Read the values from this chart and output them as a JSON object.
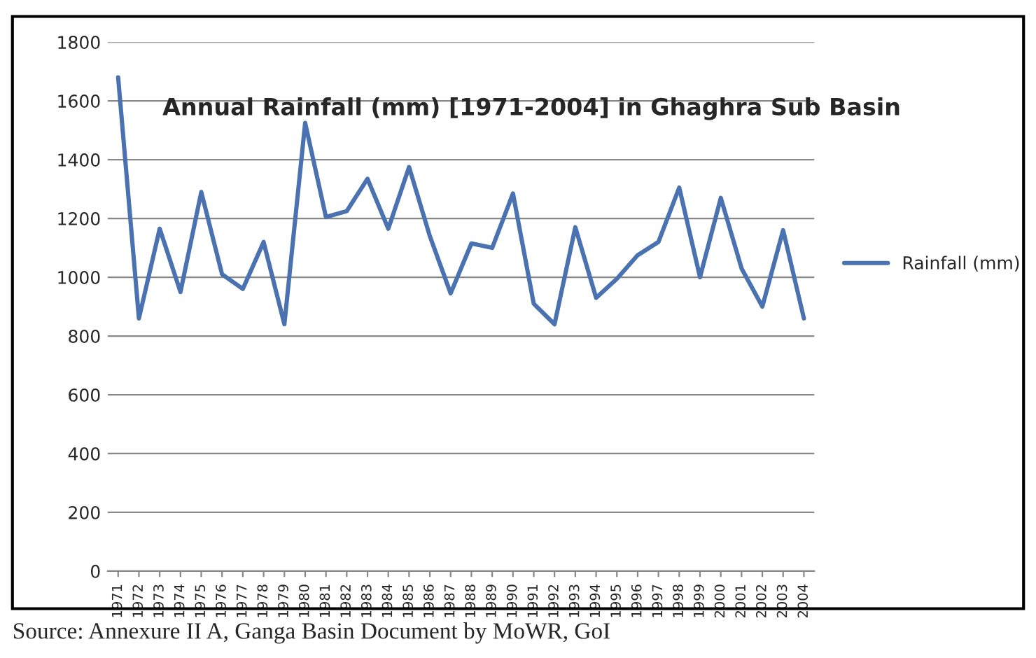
{
  "chart_data": {
    "type": "line",
    "title": "Annual Rainfall (mm) [1971-2004] in Ghaghra Sub Basin",
    "categories": [
      "1971",
      "1972",
      "1973",
      "1974",
      "1975",
      "1976",
      "1977",
      "1978",
      "1979",
      "1980",
      "1981",
      "1982",
      "1983",
      "1984",
      "1985",
      "1986",
      "1987",
      "1988",
      "1989",
      "1990",
      "1991",
      "1992",
      "1993",
      "1994",
      "1995",
      "1996",
      "1997",
      "1998",
      "1999",
      "2000",
      "2001",
      "2002",
      "2003",
      "2004"
    ],
    "series": [
      {
        "name": "Rainfall (mm)",
        "color": "#4a72b0",
        "values": [
          1680,
          860,
          1165,
          950,
          1290,
          1010,
          960,
          1120,
          840,
          1525,
          1205,
          1225,
          1335,
          1165,
          1375,
          1140,
          945,
          1115,
          1100,
          1285,
          910,
          840,
          1170,
          930,
          995,
          1075,
          1120,
          1305,
          1000,
          1270,
          1030,
          900,
          1160,
          860
        ]
      }
    ],
    "ylim": [
      0,
      1800
    ],
    "yticks": [
      0,
      200,
      400,
      600,
      800,
      1000,
      1200,
      1400,
      1600,
      1800
    ],
    "grid": "y",
    "legend": "right",
    "marker": "none",
    "line_style": "solid",
    "annotations": [
      "Source: Annexure II A, Ganga Basin Document by MoWR, GoI"
    ]
  }
}
